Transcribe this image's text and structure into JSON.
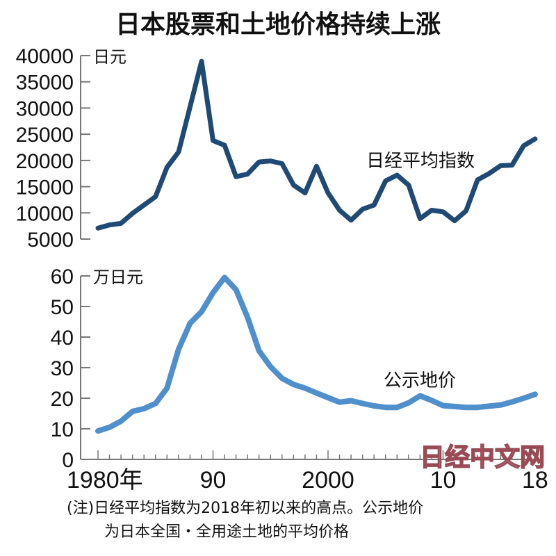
{
  "title": "日本股票和土地价格持续上涨",
  "note": {
    "line1": "(注)日经平均指数为2018年初以来的高点。公示地价",
    "line2": "为日本全国・全用途土地的平均价格"
  },
  "watermark": "日经中文网",
  "colors": {
    "nikkei_line": "#1f4a75",
    "land_line": "#4f8fcc",
    "axis": "#777777",
    "watermark": "#9a4a55"
  },
  "chart_data": [
    {
      "type": "line",
      "title": "日经平均指数",
      "series_label": "日经平均指数",
      "ylabel": "日元",
      "ylim": [
        5000,
        40000
      ],
      "yticks": [
        "40000",
        "35000",
        "30000",
        "25000",
        "20000",
        "15000",
        "10000",
        "5000"
      ],
      "x": [
        1980,
        1981,
        1982,
        1983,
        1984,
        1985,
        1986,
        1987,
        1988,
        1989,
        1990,
        1991,
        1992,
        1993,
        1994,
        1995,
        1996,
        1997,
        1998,
        1999,
        2000,
        2001,
        2002,
        2003,
        2004,
        2005,
        2006,
        2007,
        2008,
        2009,
        2010,
        2011,
        2012,
        2013,
        2014,
        2015,
        2016,
        2017,
        2018
      ],
      "values": [
        7100,
        7700,
        8000,
        9900,
        11500,
        13100,
        18700,
        21600,
        30200,
        38900,
        23800,
        22900,
        16900,
        17400,
        19700,
        19900,
        19400,
        15300,
        13800,
        18900,
        13800,
        10500,
        8600,
        10700,
        11500,
        16100,
        17200,
        15300,
        8900,
        10500,
        10200,
        8500,
        10400,
        16300,
        17500,
        19000,
        19100,
        22800,
        24100
      ],
      "color": "#1f4a75",
      "grid": false
    },
    {
      "type": "line",
      "title": "公示地价",
      "series_label": "公示地价",
      "ylabel": "万日元",
      "ylim": [
        0,
        60
      ],
      "yticks": [
        "60",
        "50",
        "40",
        "30",
        "20",
        "10",
        "0"
      ],
      "x": [
        1980,
        1981,
        1982,
        1983,
        1984,
        1985,
        1986,
        1987,
        1988,
        1989,
        1990,
        1991,
        1992,
        1993,
        1994,
        1995,
        1996,
        1997,
        1998,
        1999,
        2000,
        2001,
        2002,
        2003,
        2004,
        2005,
        2006,
        2007,
        2008,
        2009,
        2010,
        2011,
        2012,
        2013,
        2014,
        2015,
        2016,
        2017,
        2018
      ],
      "values": [
        9.3,
        10.5,
        12.5,
        15.7,
        16.6,
        18.3,
        23.3,
        36.0,
        44.5,
        48.3,
        54.5,
        59.5,
        55.5,
        46.5,
        35.5,
        30.3,
        26.5,
        24.5,
        23.3,
        21.7,
        20.2,
        18.7,
        19.2,
        18.3,
        17.5,
        17.0,
        17.0,
        18.5,
        20.8,
        19.3,
        17.6,
        17.3,
        17.0,
        17.0,
        17.4,
        17.8,
        18.8,
        20.0,
        21.3
      ],
      "color": "#4f8fcc",
      "xlabel": "",
      "xticks": [
        {
          "year": 1980,
          "label": "1980年"
        },
        {
          "year": 1990,
          "label": "90"
        },
        {
          "year": 2000,
          "label": "2000"
        },
        {
          "year": 2010,
          "label": "10"
        },
        {
          "year": 2018,
          "label": "18"
        }
      ],
      "grid": false
    }
  ]
}
